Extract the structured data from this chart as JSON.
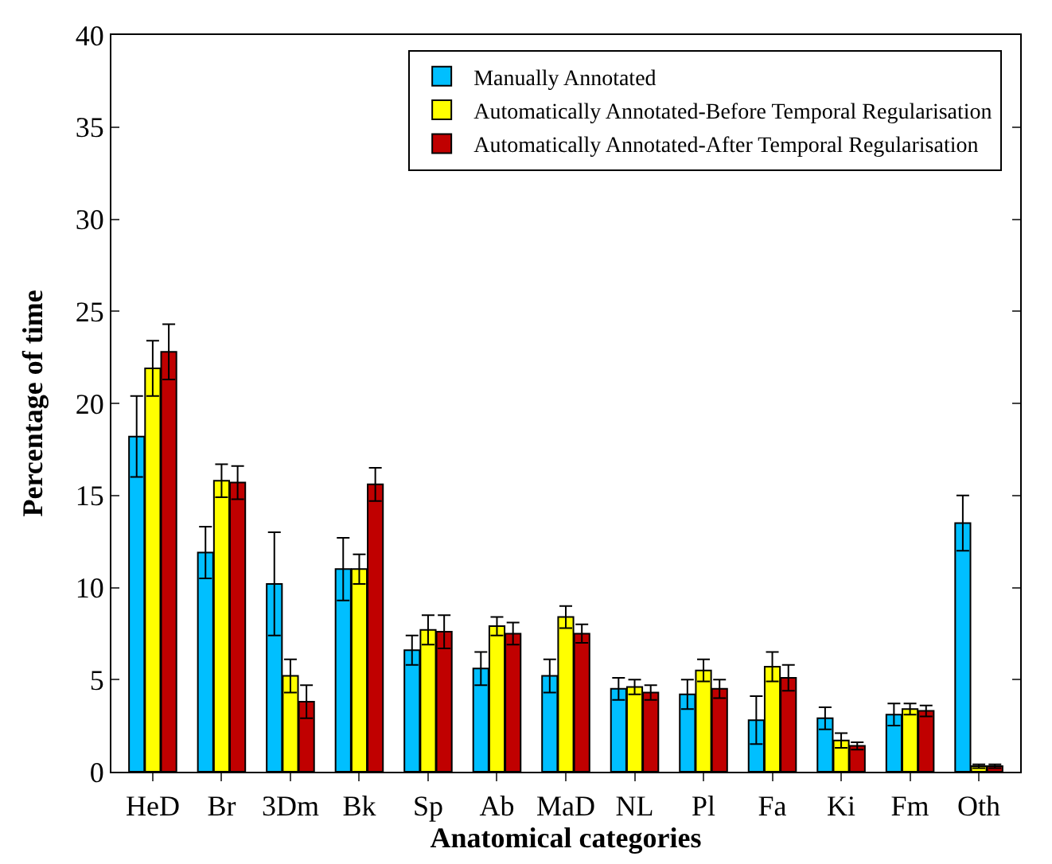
{
  "chart_data": {
    "type": "bar",
    "xlabel": "Anatomical categories",
    "ylabel": "Percentage of time",
    "categories": [
      "HeD",
      "Br",
      "3Dm",
      "Bk",
      "Sp",
      "Ab",
      "MaD",
      "NL",
      "Pl",
      "Fa",
      "Ki",
      "Fm",
      "Oth"
    ],
    "series": [
      {
        "name": "Manually Annotated",
        "color": "#00bfff",
        "values": [
          18.2,
          11.9,
          10.2,
          11.0,
          6.6,
          5.6,
          5.2,
          4.5,
          4.2,
          2.8,
          2.9,
          3.1,
          13.5
        ],
        "errors": [
          2.2,
          1.4,
          2.8,
          1.7,
          0.8,
          0.9,
          0.9,
          0.6,
          0.8,
          1.3,
          0.6,
          0.6,
          1.5
        ]
      },
      {
        "name": "Automatically Annotated-Before Temporal Regularisation",
        "color": "#ffff00",
        "values": [
          21.9,
          15.8,
          5.2,
          11.0,
          7.7,
          7.9,
          8.4,
          4.6,
          5.5,
          5.7,
          1.7,
          3.4,
          0.3
        ],
        "errors": [
          1.5,
          0.9,
          0.9,
          0.8,
          0.8,
          0.5,
          0.6,
          0.4,
          0.6,
          0.8,
          0.4,
          0.3,
          0.1
        ]
      },
      {
        "name": "Automatically Annotated-After Temporal Regularisation",
        "color": "#c00000",
        "values": [
          22.8,
          15.7,
          3.8,
          15.6,
          7.6,
          7.5,
          7.5,
          4.3,
          4.5,
          5.1,
          1.4,
          3.3,
          0.3
        ],
        "errors": [
          1.5,
          0.9,
          0.9,
          0.9,
          0.9,
          0.6,
          0.5,
          0.4,
          0.5,
          0.7,
          0.2,
          0.3,
          0.1
        ]
      }
    ],
    "ylim": [
      0,
      40
    ],
    "yticks": [
      0,
      5,
      10,
      15,
      20,
      25,
      30,
      35,
      40
    ],
    "legend": "top right"
  }
}
